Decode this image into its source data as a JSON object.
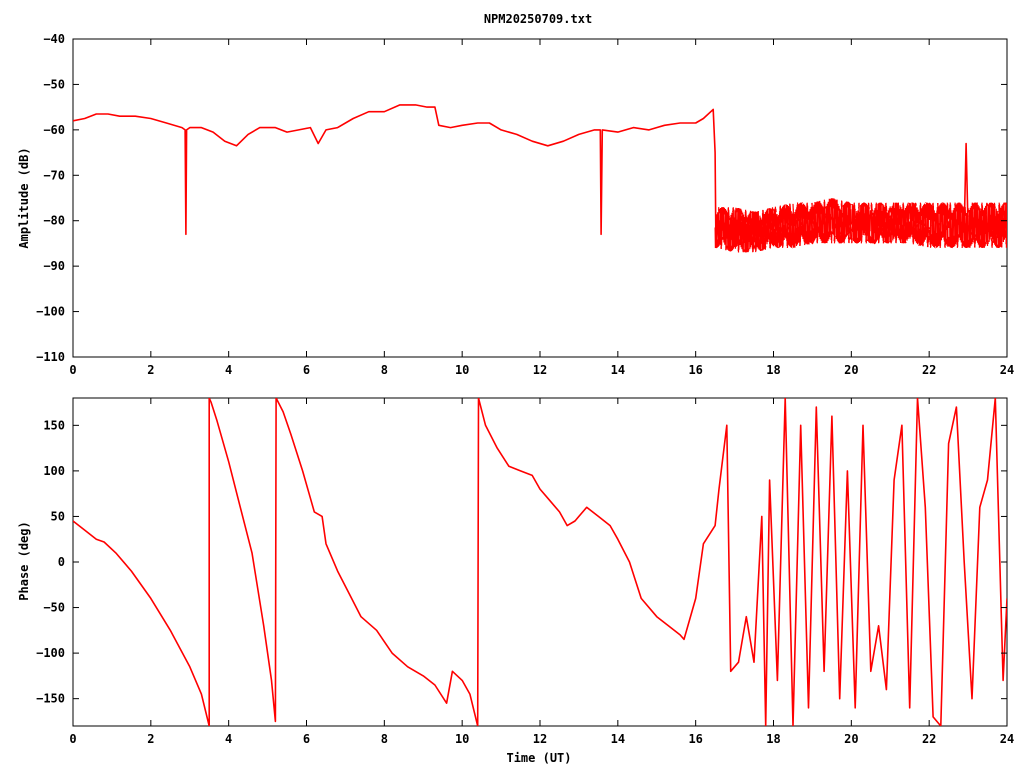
{
  "chart_data": [
    {
      "type": "line",
      "title": "NPM20250709.txt",
      "xlabel": "",
      "ylabel": "Amplitude (dB)",
      "xlim": [
        0,
        24
      ],
      "ylim": [
        -110,
        -40
      ],
      "x_ticks": [
        0,
        2,
        4,
        6,
        8,
        10,
        12,
        14,
        16,
        18,
        20,
        22,
        24
      ],
      "y_ticks": [
        -110,
        -100,
        -90,
        -80,
        -70,
        -60,
        -50,
        -40
      ],
      "grid": false,
      "color": "#ff0000",
      "series": [
        {
          "points": [
            [
              0,
              -58
            ],
            [
              0.3,
              -57.5
            ],
            [
              0.6,
              -56.5
            ],
            [
              0.9,
              -56.5
            ],
            [
              1.2,
              -57
            ],
            [
              1.6,
              -57
            ],
            [
              2.0,
              -57.5
            ],
            [
              2.4,
              -58.5
            ],
            [
              2.8,
              -59.5
            ],
            [
              2.88,
              -60
            ],
            [
              2.9,
              -83
            ],
            [
              2.92,
              -60
            ],
            [
              3.0,
              -59.5
            ],
            [
              3.3,
              -59.5
            ],
            [
              3.6,
              -60.5
            ],
            [
              3.9,
              -62.5
            ],
            [
              4.2,
              -63.5
            ],
            [
              4.5,
              -61
            ],
            [
              4.8,
              -59.5
            ],
            [
              5.2,
              -59.5
            ],
            [
              5.5,
              -60.5
            ],
            [
              5.8,
              -60
            ],
            [
              6.1,
              -59.5
            ],
            [
              6.3,
              -63
            ],
            [
              6.5,
              -60
            ],
            [
              6.8,
              -59.5
            ],
            [
              7.2,
              -57.5
            ],
            [
              7.6,
              -56
            ],
            [
              8.0,
              -56
            ],
            [
              8.4,
              -54.5
            ],
            [
              8.8,
              -54.5
            ],
            [
              9.1,
              -55
            ],
            [
              9.3,
              -55
            ],
            [
              9.4,
              -59
            ],
            [
              9.7,
              -59.5
            ],
            [
              10.0,
              -59
            ],
            [
              10.4,
              -58.5
            ],
            [
              10.7,
              -58.5
            ],
            [
              11.0,
              -60
            ],
            [
              11.4,
              -61
            ],
            [
              11.8,
              -62.5
            ],
            [
              12.2,
              -63.5
            ],
            [
              12.6,
              -62.5
            ],
            [
              13.0,
              -61
            ],
            [
              13.4,
              -60
            ],
            [
              13.55,
              -60
            ],
            [
              13.57,
              -83
            ],
            [
              13.6,
              -60
            ],
            [
              14.0,
              -60.5
            ],
            [
              14.4,
              -59.5
            ],
            [
              14.8,
              -60
            ],
            [
              15.2,
              -59
            ],
            [
              15.6,
              -58.5
            ],
            [
              16.0,
              -58.5
            ],
            [
              16.2,
              -57.5
            ],
            [
              16.45,
              -55.5
            ],
            [
              16.5,
              -65
            ],
            [
              16.52,
              -85
            ],
            [
              16.6,
              -80
            ],
            [
              16.8,
              -82
            ],
            [
              17.0,
              -85
            ],
            [
              17.2,
              -79
            ],
            [
              17.5,
              -86
            ],
            [
              17.8,
              -80
            ],
            [
              18.2,
              -84
            ],
            [
              18.6,
              -79
            ],
            [
              19.0,
              -85
            ],
            [
              19.4,
              -78
            ],
            [
              19.8,
              -84
            ],
            [
              20.2,
              -80
            ],
            [
              20.6,
              -85
            ],
            [
              21.0,
              -79
            ],
            [
              21.4,
              -84
            ],
            [
              21.8,
              -80
            ],
            [
              22.2,
              -85
            ],
            [
              22.6,
              -79
            ],
            [
              22.9,
              -82
            ],
            [
              22.95,
              -63
            ],
            [
              23.0,
              -82
            ],
            [
              23.3,
              -85
            ],
            [
              23.6,
              -79
            ],
            [
              24.0,
              -84
            ]
          ],
          "noise_band": [
            [
              16.5,
              -77,
              -86
            ],
            [
              17.0,
              -77,
              -87
            ],
            [
              17.5,
              -78,
              -87
            ],
            [
              18.0,
              -77,
              -86
            ],
            [
              18.5,
              -76,
              -86
            ],
            [
              19.0,
              -76,
              -85
            ],
            [
              19.5,
              -75,
              -85
            ],
            [
              20.0,
              -76,
              -85
            ],
            [
              20.5,
              -76,
              -85
            ],
            [
              21.0,
              -76,
              -85
            ],
            [
              21.5,
              -76,
              -85
            ],
            [
              22.0,
              -76,
              -86
            ],
            [
              22.5,
              -76,
              -86
            ],
            [
              23.0,
              -76,
              -86
            ],
            [
              23.5,
              -76,
              -86
            ],
            [
              24.0,
              -76,
              -86
            ]
          ]
        }
      ]
    },
    {
      "type": "line",
      "title": "",
      "xlabel": "Time (UT)",
      "ylabel": "Phase (deg)",
      "xlim": [
        0,
        24
      ],
      "ylim": [
        -180,
        180
      ],
      "x_ticks": [
        0,
        2,
        4,
        6,
        8,
        10,
        12,
        14,
        16,
        18,
        20,
        22,
        24
      ],
      "y_ticks": [
        -150,
        -100,
        -50,
        0,
        50,
        100,
        150
      ],
      "grid": false,
      "color": "#ff0000",
      "series": [
        {
          "points": [
            [
              0,
              45
            ],
            [
              0.3,
              35
            ],
            [
              0.6,
              25
            ],
            [
              0.8,
              22
            ],
            [
              1.1,
              10
            ],
            [
              1.5,
              -10
            ],
            [
              2.0,
              -40
            ],
            [
              2.5,
              -75
            ],
            [
              3.0,
              -115
            ],
            [
              3.3,
              -145
            ],
            [
              3.5,
              -180
            ],
            [
              3.5,
              180
            ],
            [
              3.55,
              175
            ],
            [
              3.7,
              155
            ],
            [
              4.0,
              110
            ],
            [
              4.3,
              60
            ],
            [
              4.6,
              10
            ],
            [
              4.9,
              -70
            ],
            [
              5.1,
              -130
            ],
            [
              5.2,
              -175
            ],
            [
              5.22,
              180
            ],
            [
              5.4,
              165
            ],
            [
              5.6,
              140
            ],
            [
              5.9,
              100
            ],
            [
              6.1,
              70
            ],
            [
              6.2,
              55
            ],
            [
              6.4,
              50
            ],
            [
              6.5,
              20
            ],
            [
              6.8,
              -10
            ],
            [
              7.1,
              -35
            ],
            [
              7.4,
              -60
            ],
            [
              7.8,
              -75
            ],
            [
              8.2,
              -100
            ],
            [
              8.6,
              -115
            ],
            [
              9.0,
              -125
            ],
            [
              9.3,
              -135
            ],
            [
              9.6,
              -155
            ],
            [
              9.75,
              -120
            ],
            [
              10.0,
              -130
            ],
            [
              10.2,
              -145
            ],
            [
              10.4,
              -180
            ],
            [
              10.42,
              180
            ],
            [
              10.6,
              150
            ],
            [
              10.9,
              125
            ],
            [
              11.2,
              105
            ],
            [
              11.5,
              100
            ],
            [
              11.8,
              95
            ],
            [
              12.0,
              80
            ],
            [
              12.2,
              70
            ],
            [
              12.5,
              55
            ],
            [
              12.7,
              40
            ],
            [
              12.9,
              45
            ],
            [
              13.0,
              50
            ],
            [
              13.2,
              60
            ],
            [
              13.5,
              50
            ],
            [
              13.8,
              40
            ],
            [
              14.0,
              25
            ],
            [
              14.3,
              0
            ],
            [
              14.6,
              -40
            ],
            [
              15.0,
              -60
            ],
            [
              15.3,
              -70
            ],
            [
              15.6,
              -80
            ],
            [
              15.7,
              -85
            ],
            [
              16.0,
              -40
            ],
            [
              16.2,
              20
            ],
            [
              16.5,
              40
            ],
            [
              16.6,
              80
            ],
            [
              16.8,
              150
            ],
            [
              16.9,
              -120
            ],
            [
              17.1,
              -110
            ],
            [
              17.3,
              -60
            ],
            [
              17.5,
              -110
            ],
            [
              17.7,
              50
            ],
            [
              17.8,
              -180
            ],
            [
              17.9,
              90
            ],
            [
              18.1,
              -130
            ],
            [
              18.3,
              180
            ],
            [
              18.5,
              -180
            ],
            [
              18.7,
              150
            ],
            [
              18.9,
              -160
            ],
            [
              19.1,
              170
            ],
            [
              19.3,
              -120
            ],
            [
              19.5,
              160
            ],
            [
              19.7,
              -150
            ],
            [
              19.9,
              100
            ],
            [
              20.1,
              -160
            ],
            [
              20.3,
              150
            ],
            [
              20.5,
              -120
            ],
            [
              20.7,
              -70
            ],
            [
              20.9,
              -140
            ],
            [
              21.1,
              90
            ],
            [
              21.3,
              150
            ],
            [
              21.5,
              -160
            ],
            [
              21.7,
              180
            ],
            [
              21.9,
              60
            ],
            [
              22.1,
              -170
            ],
            [
              22.3,
              -180
            ],
            [
              22.5,
              130
            ],
            [
              22.7,
              170
            ],
            [
              22.9,
              0
            ],
            [
              23.1,
              -150
            ],
            [
              23.3,
              60
            ],
            [
              23.5,
              90
            ],
            [
              23.7,
              180
            ],
            [
              23.9,
              -130
            ],
            [
              24.0,
              -40
            ]
          ]
        }
      ]
    }
  ]
}
